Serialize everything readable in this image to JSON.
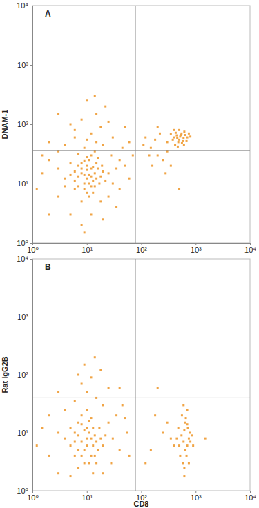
{
  "chart_data": [
    {
      "type": "scatter",
      "title": "A",
      "y_label": "DNAM-1",
      "log": true,
      "color": "#f0a445",
      "marker": "square",
      "xlim": [
        1,
        10000
      ],
      "ylim": [
        1,
        10000
      ],
      "xticks": [
        {
          "value": 1,
          "label": "10⁰"
        },
        {
          "value": 10,
          "label": "10¹"
        },
        {
          "value": 100,
          "label": "10²"
        },
        {
          "value": 1000,
          "label": "10³"
        },
        {
          "value": 10000,
          "label": "10⁴"
        }
      ],
      "yticks": [
        {
          "value": 1,
          "label": "10⁰"
        },
        {
          "value": 10,
          "label": "10¹"
        },
        {
          "value": 100,
          "label": "10²"
        },
        {
          "value": 1000,
          "label": "10³"
        },
        {
          "value": 10000,
          "label": "10⁴"
        }
      ],
      "quadrant_x": 78,
      "quadrant_y": 36,
      "x": [
        8,
        10,
        12,
        9,
        11,
        7,
        13,
        10,
        6,
        14,
        9,
        12,
        8,
        11,
        15,
        7,
        10,
        13,
        9,
        16,
        6,
        12,
        8,
        11,
        14,
        10,
        7,
        9,
        12,
        15,
        5,
        18,
        20,
        17,
        6,
        11,
        8,
        13,
        4,
        19,
        22,
        10,
        7,
        14,
        16,
        9,
        5,
        3,
        25,
        4,
        2,
        3,
        1.5,
        2,
        5,
        8,
        12,
        18,
        25,
        30,
        35,
        40,
        28,
        20,
        15,
        10,
        6,
        4,
        3,
        1.2,
        12,
        18,
        8,
        15,
        22,
        10,
        6,
        30,
        45,
        50,
        60,
        40,
        2,
        1.5,
        5,
        25,
        14,
        35,
        9,
        20,
        60,
        3,
        50,
        70,
        400,
        500,
        450,
        550,
        600,
        480,
        520,
        430,
        650,
        700,
        380,
        560,
        460,
        620,
        500,
        420,
        580,
        350,
        680,
        750,
        530,
        470,
        800,
        400,
        610,
        300,
        150,
        200,
        180,
        250,
        120,
        220,
        160,
        300,
        280,
        140,
        500,
        350,
        110,
        200
      ],
      "values": [
        15,
        12,
        18,
        10,
        14,
        13,
        11,
        20,
        16,
        15,
        8,
        9,
        22,
        25,
        12,
        9,
        17,
        19,
        14,
        18,
        11,
        13,
        18,
        10,
        9,
        7,
        20,
        24,
        30,
        22,
        14,
        13,
        16,
        10,
        8,
        6,
        5,
        7,
        12,
        20,
        11,
        28,
        32,
        35,
        27,
        40,
        22,
        18,
        15,
        9,
        25,
        6,
        15,
        3,
        3,
        2,
        3,
        5,
        6,
        10,
        18,
        25,
        30,
        45,
        50,
        55,
        60,
        45,
        35,
        8,
        70,
        90,
        120,
        150,
        200,
        250,
        80,
        60,
        40,
        20,
        12,
        8,
        50,
        30,
        100,
        110,
        300,
        4,
        1.5,
        2.5,
        50,
        150,
        90,
        30,
        60,
        55,
        65,
        70,
        58,
        50,
        62,
        72,
        66,
        60,
        55,
        48,
        58,
        75,
        80,
        45,
        52,
        68,
        52,
        70,
        66,
        42,
        62,
        80,
        45,
        50,
        40,
        30,
        55,
        25,
        60,
        70,
        20,
        35,
        15,
        30,
        8,
        20,
        45,
        90
      ]
    },
    {
      "type": "scatter",
      "title": "B",
      "y_label": "Rat IgG2B",
      "x_label": "CD8",
      "log": true,
      "color": "#f0a445",
      "marker": "square",
      "xlim": [
        1,
        10000
      ],
      "ylim": [
        1,
        10000
      ],
      "xticks": [
        {
          "value": 1,
          "label": "10⁰"
        },
        {
          "value": 10,
          "label": "10¹"
        },
        {
          "value": 100,
          "label": "10²"
        },
        {
          "value": 1000,
          "label": "10³"
        },
        {
          "value": 10000,
          "label": "10⁴"
        }
      ],
      "yticks": [
        {
          "value": 1,
          "label": "10⁰"
        },
        {
          "value": 10,
          "label": "10¹"
        },
        {
          "value": 100,
          "label": "10²"
        },
        {
          "value": 1000,
          "label": "10³"
        },
        {
          "value": 10000,
          "label": "10⁴"
        }
      ],
      "quadrant_x": 78,
      "quadrant_y": 40,
      "x": [
        8,
        10,
        7,
        12,
        9,
        11,
        6,
        13,
        8,
        10,
        14,
        7,
        9,
        12,
        15,
        6,
        11,
        8,
        13,
        5,
        16,
        10,
        7,
        9,
        14,
        18,
        4,
        12,
        20,
        6,
        17,
        8,
        11,
        3,
        22,
        10,
        5,
        15,
        7,
        13,
        2,
        1.5,
        3,
        5,
        25,
        30,
        40,
        35,
        20,
        15,
        10,
        8,
        6,
        4,
        2,
        12,
        18,
        9,
        25,
        45,
        55,
        60,
        1.2,
        3,
        20,
        28,
        14,
        40,
        7,
        50,
        600,
        700,
        550,
        650,
        750,
        500,
        620,
        680,
        580,
        720,
        800,
        450,
        640,
        560,
        700,
        900,
        620,
        520,
        780,
        660,
        600,
        750,
        480,
        850,
        400,
        700,
        620,
        250,
        150,
        300,
        200,
        120,
        350,
        1500,
        180
      ],
      "values": [
        7,
        6,
        9,
        8,
        5,
        10,
        7,
        6,
        4,
        12,
        9,
        5,
        11,
        4,
        7,
        10,
        3,
        14,
        12,
        6,
        5,
        8,
        15,
        3,
        4,
        8,
        8,
        18,
        6,
        4,
        12,
        20,
        16,
        10,
        9,
        25,
        12,
        3,
        2.5,
        2,
        4,
        12,
        2,
        1.8,
        15,
        8,
        5,
        20,
        30,
        40,
        50,
        70,
        35,
        25,
        20,
        90,
        120,
        150,
        60,
        30,
        10,
        4,
        6,
        50,
        2,
        3,
        200,
        60,
        100,
        18,
        7,
        6,
        9,
        5,
        8,
        6,
        11,
        4,
        3,
        12,
        7,
        8,
        15,
        20,
        25,
        6,
        2.5,
        4,
        10,
        18,
        30,
        3,
        12,
        9,
        6,
        14,
        1.8,
        10,
        5,
        15,
        60,
        3,
        8,
        8,
        20
      ]
    }
  ]
}
